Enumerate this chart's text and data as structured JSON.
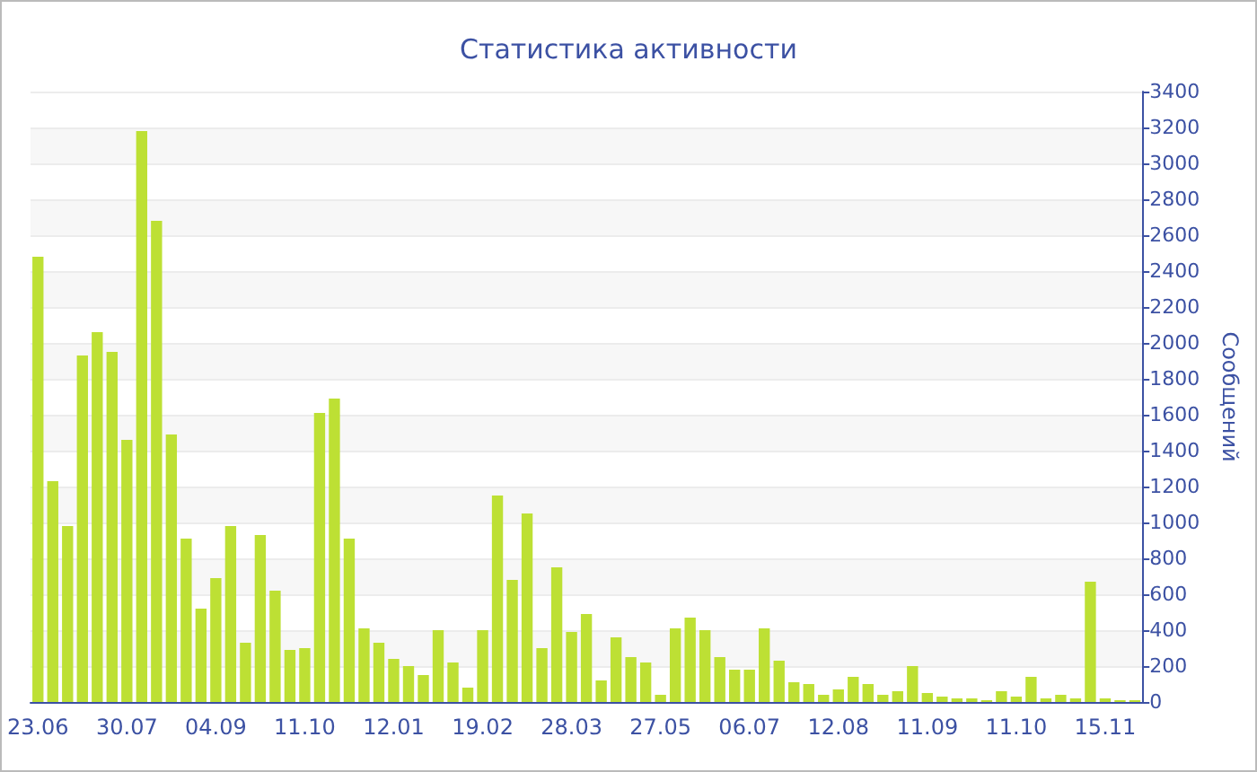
{
  "chart_data": {
    "type": "bar",
    "title": "Статистика активности",
    "ylabel": "Сообщений",
    "categories": [
      "23.06",
      null,
      null,
      null,
      null,
      null,
      "30.07",
      null,
      null,
      null,
      null,
      null,
      "04.09",
      null,
      null,
      null,
      null,
      null,
      "11.10",
      null,
      null,
      null,
      null,
      null,
      "12.01",
      null,
      null,
      null,
      null,
      null,
      "19.02",
      null,
      null,
      null,
      null,
      null,
      "28.03",
      null,
      null,
      null,
      null,
      null,
      "27.05",
      null,
      null,
      null,
      null,
      null,
      "06.07",
      null,
      null,
      null,
      null,
      null,
      "12.08",
      null,
      null,
      null,
      null,
      null,
      "11.09",
      null,
      null,
      null,
      null,
      null,
      "11.10",
      null,
      null,
      null,
      null,
      null,
      "15.11",
      null,
      null
    ],
    "values": [
      2480,
      1230,
      980,
      1930,
      2060,
      1950,
      1460,
      3180,
      2680,
      1490,
      910,
      520,
      690,
      980,
      330,
      930,
      620,
      290,
      300,
      1610,
      1690,
      910,
      410,
      330,
      240,
      200,
      150,
      400,
      220,
      80,
      400,
      1150,
      680,
      1050,
      300,
      750,
      390,
      490,
      120,
      360,
      250,
      220,
      40,
      410,
      470,
      400,
      250,
      180,
      180,
      410,
      230,
      110,
      100,
      40,
      70,
      140,
      100,
      40,
      60,
      200,
      50,
      30,
      20,
      20,
      10,
      60,
      30,
      140,
      20,
      40,
      20,
      670,
      20,
      10,
      10
    ],
    "color": "#bde034",
    "ylim": [
      0,
      3400
    ],
    "yticks": [
      0,
      200,
      400,
      600,
      800,
      1000,
      1200,
      1400,
      1600,
      1800,
      2000,
      2200,
      2400,
      2600,
      2800,
      3000,
      3200,
      3400
    ],
    "grid": "y"
  }
}
